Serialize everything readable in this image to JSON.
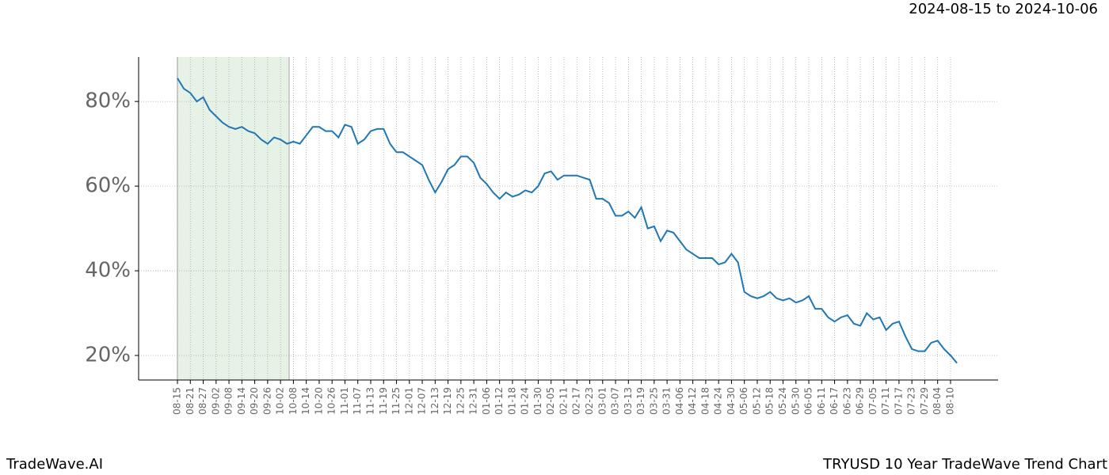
{
  "chart_data": {
    "type": "line",
    "title": "2024-08-15 to 2024-10-06",
    "footer_left": "TradeWave.AI",
    "footer_right": "TRYUSD 10 Year TradeWave Trend Chart",
    "categories": [
      "08-15",
      null,
      "08-21",
      null,
      "08-27",
      null,
      "09-02",
      null,
      "09-08",
      null,
      "09-14",
      null,
      "09-20",
      null,
      "09-26",
      null,
      "10-02",
      null,
      "10-08",
      null,
      "10-14",
      null,
      "10-20",
      null,
      "10-26",
      null,
      "11-01",
      null,
      "11-07",
      null,
      "11-13",
      null,
      "11-19",
      null,
      "11-25",
      null,
      "12-01",
      null,
      "12-07",
      null,
      "12-13",
      null,
      "12-19",
      null,
      "12-25",
      null,
      "12-31",
      null,
      "01-06",
      null,
      "01-12",
      null,
      "01-18",
      null,
      "01-24",
      null,
      "01-30",
      null,
      "02-05",
      null,
      "02-11",
      null,
      "02-17",
      null,
      "02-23",
      null,
      "03-01",
      null,
      "03-07",
      null,
      "03-13",
      null,
      "03-19",
      null,
      "03-25",
      null,
      "03-31",
      null,
      "04-06",
      null,
      "04-12",
      null,
      "04-18",
      null,
      "04-24",
      null,
      "04-30",
      null,
      "05-06",
      null,
      "05-12",
      null,
      "05-18",
      null,
      "05-24",
      null,
      "05-30",
      null,
      "06-05",
      null,
      "06-11",
      null,
      "06-17",
      null,
      "06-23",
      null,
      "06-29",
      null,
      "07-05",
      null,
      "07-11",
      null,
      "07-17",
      null,
      "07-23",
      null,
      "07-29",
      null,
      "08-04",
      null,
      "08-10",
      null
    ],
    "series": [
      {
        "color": "#1f77b4",
        "values": [
          85.5,
          83,
          82,
          80,
          81,
          78,
          76.5,
          75,
          74,
          73.5,
          74,
          73,
          72.5,
          71,
          70,
          71.5,
          71,
          70,
          70.5,
          70,
          72,
          74,
          74,
          73,
          73,
          71.5,
          74.5,
          74,
          70,
          71,
          73,
          73.5,
          73.5,
          70,
          68,
          68,
          67,
          66,
          65,
          61.5,
          58.5,
          61,
          64,
          65,
          67,
          67,
          65.5,
          62,
          60.5,
          58.5,
          57,
          58.5,
          57.5,
          58,
          59,
          58.5,
          60,
          63,
          63.5,
          61.5,
          62.5,
          62.5,
          62.5,
          62,
          61.5,
          57,
          57,
          56,
          53,
          53,
          54,
          52.5,
          55,
          50,
          50.5,
          47,
          49.5,
          49,
          47,
          45,
          44,
          43,
          43,
          43,
          41.5,
          42,
          44,
          42,
          35,
          34,
          33.5,
          34,
          35,
          33.5,
          33,
          33.5,
          32.5,
          33,
          34,
          31,
          31,
          29,
          28,
          29,
          29.5,
          27.5,
          27,
          30,
          28.5,
          29,
          26,
          27.5,
          28,
          24.5,
          21.5,
          21,
          21,
          23,
          23.5,
          21.5,
          20,
          18.2
        ]
      }
    ],
    "highlight": [
      0,
      17.33
    ],
    "highlight_color": "#e5f2e5",
    "ylim": [
      14.2,
      90.5
    ],
    "yticks": [
      {
        "value": 20,
        "label": "20%"
      },
      {
        "value": 40,
        "label": "40%"
      },
      {
        "value": 60,
        "label": "60%"
      },
      {
        "value": 80,
        "label": "80%"
      }
    ],
    "grid": true
  }
}
